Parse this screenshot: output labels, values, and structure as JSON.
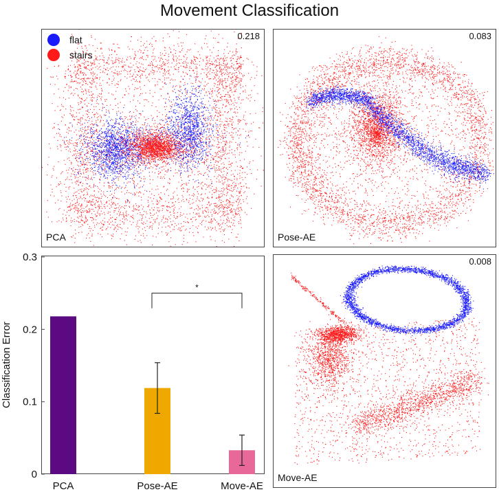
{
  "title": "Movement Classification",
  "legend": [
    {
      "label": "flat",
      "color": "#1a1aff"
    },
    {
      "label": "stairs",
      "color": "#ff1a1a"
    }
  ],
  "panels": {
    "pca": {
      "label": "PCA",
      "score": "0.218"
    },
    "pose": {
      "label": "Pose-AE",
      "score": "0.083"
    },
    "move": {
      "label": "Move-AE",
      "score": "0.008"
    }
  },
  "chart_data": [
    {
      "type": "bar",
      "title": "",
      "xlabel": "",
      "ylabel": "Classification Error",
      "ylim": [
        0,
        0.3
      ],
      "yticks": [
        "0",
        "0.1",
        "0.2",
        "0.3"
      ],
      "categories": [
        "PCA",
        "Pose-AE",
        "Move-AE"
      ],
      "values": [
        0.218,
        0.119,
        0.033
      ],
      "error": [
        null,
        0.035,
        0.021
      ],
      "colors": [
        "#5b0a82",
        "#efa800",
        "#e8689a"
      ],
      "significance": {
        "from": "Pose-AE",
        "to": "Move-AE",
        "label": "*"
      }
    },
    {
      "type": "scatter",
      "series": [
        {
          "name": "flat",
          "color": "#1a1aff"
        },
        {
          "name": "stairs",
          "color": "#ff1a1a"
        }
      ]
    }
  ]
}
